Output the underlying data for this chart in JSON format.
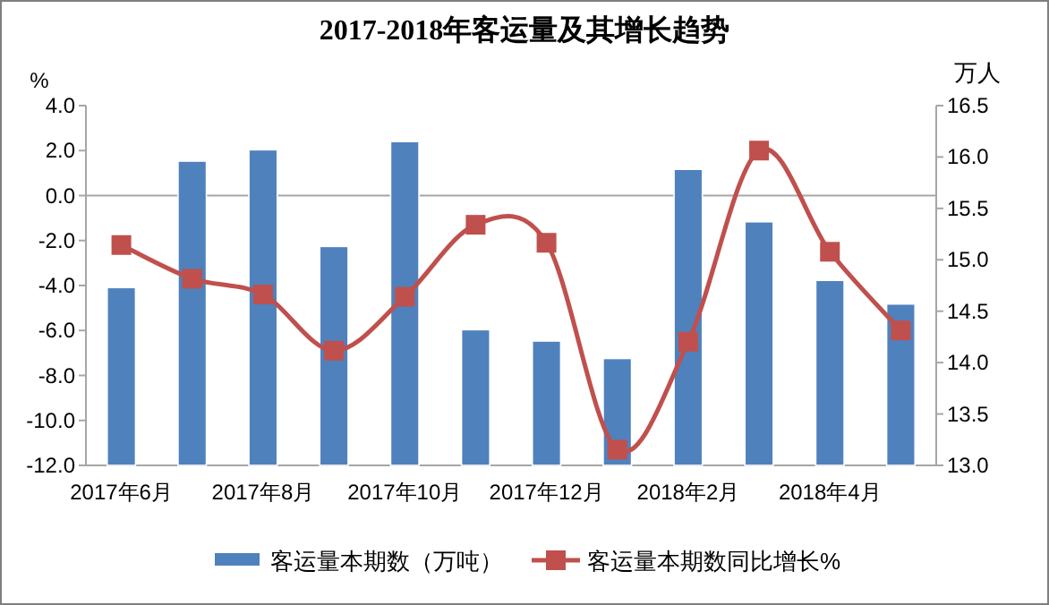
{
  "chart_data": {
    "type": "bar",
    "title": "2017-2018年客运量及其增长趋势",
    "ylabel": "%",
    "y2label": "万人",
    "categories": [
      "2017年6月",
      null,
      "2017年8月",
      null,
      "2017年10月",
      null,
      "2017年12月",
      null,
      "2018年2月",
      null,
      "2018年4月",
      null
    ],
    "series": [
      {
        "name": "客运量本期数（万吨）",
        "axis": "y2",
        "color": "#4f81bd",
        "values": [
          14.73,
          15.96,
          16.07,
          15.13,
          16.15,
          14.32,
          14.21,
          14.04,
          15.88,
          15.37,
          14.8,
          14.57
        ]
      },
      {
        "name": "客运量本期数同比增长%",
        "type": "line",
        "axis": "y",
        "color": "#c0504d",
        "marker": "square",
        "values": [
          -2.2,
          -3.7,
          -4.4,
          -6.9,
          -4.5,
          -1.3,
          -2.1,
          -11.3,
          -6.5,
          2.0,
          -2.5,
          -6.0
        ]
      }
    ],
    "ylim": [
      -12,
      4
    ],
    "yticks": [
      {
        "value": -12,
        "label": "-12.0"
      },
      {
        "value": -10,
        "label": "-10.0"
      },
      {
        "value": -8,
        "label": "-8.0"
      },
      {
        "value": -6,
        "label": "-6.0"
      },
      {
        "value": -4,
        "label": "-4.0"
      },
      {
        "value": -2,
        "label": "-2.0"
      },
      {
        "value": 0,
        "label": "0.0"
      },
      {
        "value": 2,
        "label": "2.0"
      },
      {
        "value": 4,
        "label": "4.0"
      }
    ],
    "y2lim": [
      13,
      16.5
    ],
    "y2ticks": [
      {
        "value": 13,
        "label": "13.0"
      },
      {
        "value": 13.5,
        "label": "13.5"
      },
      {
        "value": 14,
        "label": "14.0"
      },
      {
        "value": 14.5,
        "label": "14.5"
      },
      {
        "value": 15,
        "label": "15.0"
      },
      {
        "value": 15.5,
        "label": "15.5"
      },
      {
        "value": 16,
        "label": "16.0"
      },
      {
        "value": 16.5,
        "label": "16.5"
      }
    ],
    "ref_lines": [
      {
        "axis": "y",
        "value": 0,
        "color": "#a6a6a6"
      }
    ],
    "legend": "bottom"
  }
}
